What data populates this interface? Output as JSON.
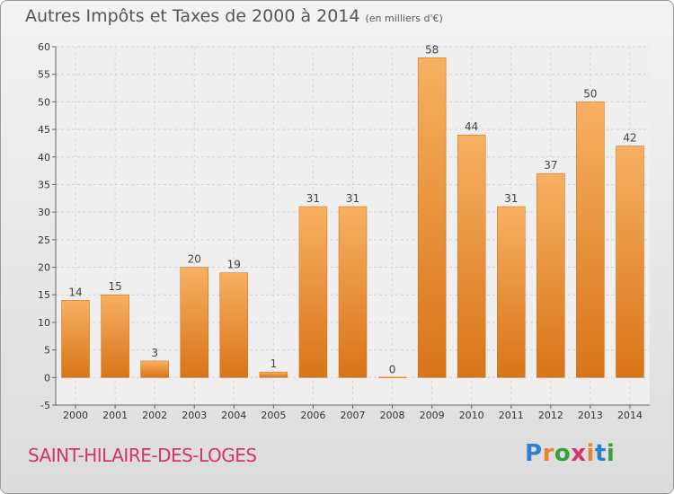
{
  "title": "Autres Impôts et Taxes de 2000 à 2014",
  "unit_note": "(en milliers d'€)",
  "commune": "SAINT-HILAIRE-DES-LOGES",
  "logo": {
    "text": "Proxiti",
    "letters": [
      "P",
      "r",
      "o",
      "x",
      "i",
      "t",
      "i"
    ],
    "colors": [
      "#2f7fcf",
      "#e8862e",
      "#3aa13a",
      "#d6326e",
      "#e8862e",
      "#2f7fcf",
      "#3aa13a"
    ]
  },
  "colors": {
    "bar": "#f08a28",
    "bar_light": "#f7b062",
    "bar_dark": "#d97418",
    "commune": "#d6326e"
  },
  "chart_data": {
    "type": "bar",
    "title": "Autres Impôts et Taxes de 2000 à 2014",
    "subtitle": "(en milliers d'€)",
    "xlabel": "",
    "ylabel": "",
    "categories": [
      "2000",
      "2001",
      "2002",
      "2003",
      "2004",
      "2005",
      "2006",
      "2007",
      "2008",
      "2009",
      "2010",
      "2011",
      "2012",
      "2013",
      "2014"
    ],
    "values": [
      14,
      15,
      3,
      20,
      19,
      1,
      31,
      31,
      0,
      58,
      44,
      31,
      37,
      50,
      42
    ],
    "data_labels": [
      "14",
      "15",
      "3",
      "20",
      "19",
      "1",
      "31",
      "31",
      "0",
      "58",
      "44",
      "31",
      "37",
      "50",
      "42"
    ],
    "ylim": [
      -5,
      60
    ],
    "yticks": [
      -5,
      0,
      5,
      10,
      15,
      20,
      25,
      30,
      35,
      40,
      45,
      50,
      55,
      60
    ],
    "grid": true,
    "legend": "none"
  }
}
